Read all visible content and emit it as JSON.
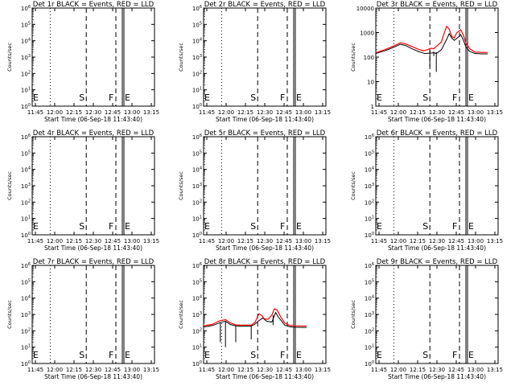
{
  "figure": {
    "xlabel": "Start Time (06-Sep-18 11:43:40)",
    "ylabel": "Counts/sec",
    "xticks": [
      "11:45",
      "12:00",
      "12:15",
      "12:30",
      "12:45",
      "13:00",
      "13:15"
    ],
    "colors": {
      "events": "#000000",
      "lld": "#ff0000",
      "axes": "#000000",
      "background": "#ffffff"
    }
  },
  "chart_data": [
    {
      "type": "line",
      "title": "Det 1r BLACK = Events, RED = LLD",
      "ylim": [
        1,
        1000000
      ],
      "yscale": "log",
      "yticks": [
        "10^0",
        "10^1",
        "10^2",
        "10^3",
        "10^4",
        "10^5",
        "10^6"
      ],
      "xticks": [
        "11:45",
        "12:00",
        "12:15",
        "12:30",
        "12:45",
        "13:00",
        "13:15"
      ],
      "xlim_min": [
        705,
        800
      ],
      "markers": [
        {
          "label": "E",
          "x": 705,
          "dash": "dot"
        },
        {
          "label": "",
          "x": 719,
          "dash": "dot"
        },
        {
          "label": "S",
          "x": 747,
          "dash": "dash"
        },
        {
          "label": "F",
          "x": 770,
          "dash": "dash"
        },
        {
          "label": "E",
          "x": 775,
          "dash": "solid"
        }
      ],
      "events": [],
      "lld": [],
      "spikes": []
    },
    {
      "type": "line",
      "title": "Det 2r BLACK = Events, RED = LLD",
      "ylim": [
        1,
        1000000
      ],
      "yscale": "log",
      "yticks": [
        "10^0",
        "10^1",
        "10^2",
        "10^3",
        "10^4",
        "10^5",
        "10^6"
      ],
      "xticks": [
        "11:45",
        "12:00",
        "12:15",
        "12:30",
        "12:45",
        "13:00",
        "13:15"
      ],
      "xlim_min": [
        705,
        800
      ],
      "markers": [
        {
          "label": "E",
          "x": 705,
          "dash": "dot"
        },
        {
          "label": "",
          "x": 719,
          "dash": "dot"
        },
        {
          "label": "S",
          "x": 747,
          "dash": "dash"
        },
        {
          "label": "F",
          "x": 770,
          "dash": "dash"
        },
        {
          "label": "E",
          "x": 775,
          "dash": "solid"
        }
      ],
      "events": [],
      "lld": [],
      "spikes": []
    },
    {
      "type": "line",
      "title": "Det 3r BLACK = Events, RED = LLD",
      "ylim": [
        1,
        10000
      ],
      "yscale": "log",
      "yticks": [
        "1",
        "10",
        "100",
        "1000",
        "10000"
      ],
      "xticks": [
        "11:45",
        "12:00",
        "12:15",
        "12:30",
        "12:45",
        "13:00",
        "13:15"
      ],
      "xlim_min": [
        705,
        800
      ],
      "markers": [
        {
          "label": "E",
          "x": 705,
          "dash": "dot"
        },
        {
          "label": "",
          "x": 719,
          "dash": "dot"
        },
        {
          "label": "S",
          "x": 747,
          "dash": "dash"
        },
        {
          "label": "F",
          "x": 770,
          "dash": "dash"
        },
        {
          "label": "E",
          "x": 775,
          "dash": "solid"
        }
      ],
      "events": [
        [
          705,
          140
        ],
        [
          712,
          180
        ],
        [
          718,
          240
        ],
        [
          724,
          330
        ],
        [
          728,
          300
        ],
        [
          733,
          220
        ],
        [
          738,
          170
        ],
        [
          743,
          140
        ],
        [
          747,
          145
        ],
        [
          750,
          150
        ],
        [
          752,
          140
        ],
        [
          756,
          200
        ],
        [
          760,
          520
        ],
        [
          762,
          900
        ],
        [
          764,
          600
        ],
        [
          766,
          480
        ],
        [
          769,
          650
        ],
        [
          771,
          820
        ],
        [
          773,
          500
        ],
        [
          775,
          260
        ],
        [
          778,
          170
        ],
        [
          782,
          140
        ],
        [
          788,
          135
        ],
        [
          792,
          135
        ]
      ],
      "lld": [
        [
          705,
          150
        ],
        [
          712,
          200
        ],
        [
          718,
          270
        ],
        [
          724,
          380
        ],
        [
          728,
          350
        ],
        [
          733,
          270
        ],
        [
          738,
          210
        ],
        [
          742,
          180
        ],
        [
          745,
          200
        ],
        [
          748,
          230
        ],
        [
          750,
          220
        ],
        [
          753,
          300
        ],
        [
          756,
          420
        ],
        [
          758,
          900
        ],
        [
          760,
          1800
        ],
        [
          762,
          1400
        ],
        [
          764,
          700
        ],
        [
          766,
          600
        ],
        [
          768,
          1000
        ],
        [
          771,
          1300
        ],
        [
          773,
          800
        ],
        [
          775,
          380
        ],
        [
          778,
          220
        ],
        [
          782,
          160
        ],
        [
          788,
          155
        ],
        [
          792,
          155
        ]
      ],
      "spikes": [
        [
          747,
          190,
          40
        ],
        [
          750,
          170,
          110
        ],
        [
          752,
          160,
          25
        ]
      ]
    },
    {
      "type": "line",
      "title": "Det 4r BLACK = Events, RED = LLD",
      "ylim": [
        1,
        1000000
      ],
      "yscale": "log",
      "yticks": [
        "10^0",
        "10^1",
        "10^2",
        "10^3",
        "10^4",
        "10^5",
        "10^6"
      ],
      "xticks": [
        "11:45",
        "12:00",
        "12:15",
        "12:30",
        "12:45",
        "13:00",
        "13:15"
      ],
      "xlim_min": [
        705,
        800
      ],
      "markers": [
        {
          "label": "E",
          "x": 705,
          "dash": "dot"
        },
        {
          "label": "",
          "x": 719,
          "dash": "dot"
        },
        {
          "label": "S",
          "x": 747,
          "dash": "dash"
        },
        {
          "label": "F",
          "x": 770,
          "dash": "dash"
        },
        {
          "label": "E",
          "x": 775,
          "dash": "solid"
        }
      ],
      "events": [],
      "lld": [],
      "spikes": []
    },
    {
      "type": "line",
      "title": "Det 5r BLACK = Events, RED = LLD",
      "ylim": [
        1,
        1000000
      ],
      "yscale": "log",
      "yticks": [
        "10^0",
        "10^1",
        "10^2",
        "10^3",
        "10^4",
        "10^5",
        "10^6"
      ],
      "xticks": [
        "11:45",
        "12:00",
        "12:15",
        "12:30",
        "12:45",
        "13:00",
        "13:15"
      ],
      "xlim_min": [
        705,
        800
      ],
      "markers": [
        {
          "label": "E",
          "x": 705,
          "dash": "dot"
        },
        {
          "label": "",
          "x": 719,
          "dash": "dot"
        },
        {
          "label": "S",
          "x": 747,
          "dash": "dash"
        },
        {
          "label": "F",
          "x": 770,
          "dash": "dash"
        },
        {
          "label": "E",
          "x": 775,
          "dash": "solid"
        }
      ],
      "events": [],
      "lld": [],
      "spikes": []
    },
    {
      "type": "line",
      "title": "Det 6r BLACK = Events, RED = LLD",
      "ylim": [
        1,
        1000000
      ],
      "yscale": "log",
      "yticks": [
        "10^0",
        "10^1",
        "10^2",
        "10^3",
        "10^4",
        "10^5",
        "10^6"
      ],
      "xticks": [
        "11:45",
        "12:00",
        "12:15",
        "12:30",
        "12:45",
        "13:00",
        "13:15"
      ],
      "xlim_min": [
        705,
        800
      ],
      "markers": [
        {
          "label": "E",
          "x": 705,
          "dash": "dot"
        },
        {
          "label": "",
          "x": 719,
          "dash": "dot"
        },
        {
          "label": "S",
          "x": 747,
          "dash": "dash"
        },
        {
          "label": "F",
          "x": 770,
          "dash": "dash"
        },
        {
          "label": "E",
          "x": 775,
          "dash": "solid"
        }
      ],
      "events": [],
      "lld": [],
      "spikes": []
    },
    {
      "type": "line",
      "title": "Det 7r BLACK = Events, RED = LLD",
      "ylim": [
        1,
        1000000
      ],
      "yscale": "log",
      "yticks": [
        "10^0",
        "10^1",
        "10^2",
        "10^3",
        "10^4",
        "10^5",
        "10^6"
      ],
      "xticks": [
        "11:45",
        "12:00",
        "12:15",
        "12:30",
        "12:45",
        "13:00",
        "13:15"
      ],
      "xlim_min": [
        705,
        800
      ],
      "markers": [
        {
          "label": "E",
          "x": 705,
          "dash": "dot"
        },
        {
          "label": "",
          "x": 719,
          "dash": "dot"
        },
        {
          "label": "S",
          "x": 747,
          "dash": "dash"
        },
        {
          "label": "F",
          "x": 770,
          "dash": "dash"
        },
        {
          "label": "E",
          "x": 775,
          "dash": "solid"
        }
      ],
      "events": [],
      "lld": [],
      "spikes": []
    },
    {
      "type": "line",
      "title": "Det 8r BLACK = Events, RED = LLD",
      "ylim": [
        1,
        1000000
      ],
      "yscale": "log",
      "yticks": [
        "10^0",
        "10^1",
        "10^2",
        "10^3",
        "10^4",
        "10^5",
        "10^6"
      ],
      "xticks": [
        "11:45",
        "12:00",
        "12:15",
        "12:30",
        "12:45",
        "13:00",
        "13:15"
      ],
      "xlim_min": [
        705,
        800
      ],
      "markers": [
        {
          "label": "E",
          "x": 705,
          "dash": "dot"
        },
        {
          "label": "",
          "x": 719,
          "dash": "dot"
        },
        {
          "label": "S",
          "x": 747,
          "dash": "dash"
        },
        {
          "label": "F",
          "x": 770,
          "dash": "dash"
        },
        {
          "label": "E",
          "x": 775,
          "dash": "solid"
        }
      ],
      "events": [
        [
          705,
          170
        ],
        [
          712,
          210
        ],
        [
          718,
          320
        ],
        [
          722,
          380
        ],
        [
          726,
          240
        ],
        [
          730,
          200
        ],
        [
          734,
          190
        ],
        [
          738,
          190
        ],
        [
          742,
          190
        ],
        [
          745,
          260
        ],
        [
          748,
          420
        ],
        [
          751,
          600
        ],
        [
          754,
          380
        ],
        [
          758,
          340
        ],
        [
          761,
          1300
        ],
        [
          763,
          700
        ],
        [
          765,
          450
        ],
        [
          768,
          220
        ],
        [
          772,
          175
        ],
        [
          776,
          165
        ],
        [
          780,
          160
        ],
        [
          785,
          160
        ]
      ],
      "lld": [
        [
          705,
          200
        ],
        [
          712,
          250
        ],
        [
          716,
          360
        ],
        [
          718,
          420
        ],
        [
          722,
          480
        ],
        [
          726,
          300
        ],
        [
          730,
          230
        ],
        [
          734,
          220
        ],
        [
          738,
          220
        ],
        [
          742,
          220
        ],
        [
          745,
          330
        ],
        [
          748,
          1100
        ],
        [
          750,
          900
        ],
        [
          752,
          550
        ],
        [
          755,
          500
        ],
        [
          758,
          900
        ],
        [
          760,
          2200
        ],
        [
          762,
          1900
        ],
        [
          765,
          700
        ],
        [
          768,
          300
        ],
        [
          772,
          210
        ],
        [
          776,
          200
        ],
        [
          780,
          195
        ],
        [
          785,
          195
        ]
      ],
      "spikes": [
        [
          718,
          320,
          20
        ],
        [
          722,
          380,
          10
        ],
        [
          730,
          200,
          20
        ],
        [
          742,
          190,
          30
        ],
        [
          759,
          900,
          220
        ]
      ]
    },
    {
      "type": "line",
      "title": "Det 9r BLACK = Events, RED = LLD",
      "ylim": [
        1,
        1000000
      ],
      "yscale": "log",
      "yticks": [
        "10^0",
        "10^1",
        "10^2",
        "10^3",
        "10^4",
        "10^5",
        "10^6"
      ],
      "xticks": [
        "11:45",
        "12:00",
        "12:15",
        "12:30",
        "12:45",
        "13:00",
        "13:15"
      ],
      "xlim_min": [
        705,
        800
      ],
      "markers": [
        {
          "label": "E",
          "x": 705,
          "dash": "dot"
        },
        {
          "label": "",
          "x": 719,
          "dash": "dot"
        },
        {
          "label": "S",
          "x": 747,
          "dash": "dash"
        },
        {
          "label": "F",
          "x": 770,
          "dash": "dash"
        },
        {
          "label": "E",
          "x": 775,
          "dash": "solid"
        }
      ],
      "events": [],
      "lld": [],
      "spikes": []
    }
  ]
}
